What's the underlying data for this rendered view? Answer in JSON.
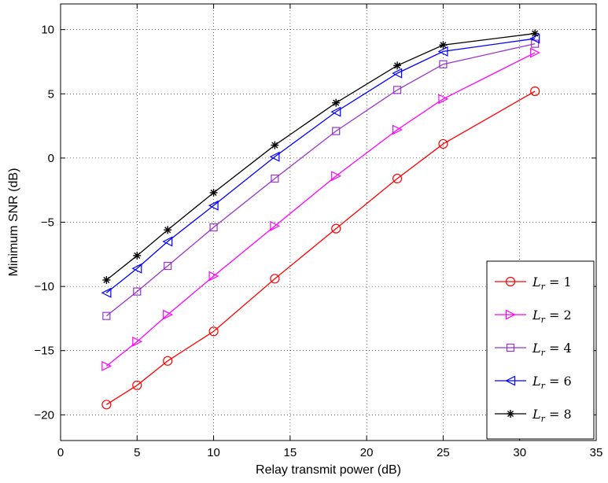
{
  "chart_data": {
    "type": "line",
    "xlabel": "Relay transmit power (dB)",
    "ylabel": "Minimum SNR (dB)",
    "xlim": [
      0,
      35
    ],
    "ylim": [
      -22,
      12
    ],
    "xticks": [
      0,
      5,
      10,
      15,
      20,
      25,
      30,
      35
    ],
    "yticks": [
      -20,
      -15,
      -10,
      -5,
      0,
      5,
      10
    ],
    "grid": true,
    "legend_position": "bottom-right",
    "x": [
      3,
      5,
      7,
      10,
      14,
      18,
      22,
      25,
      31
    ],
    "series": [
      {
        "name": "L_r = 1",
        "legend_main": "L",
        "legend_sub": "r",
        "legend_value": " = 1",
        "color": "#ff0000",
        "marker": "circle",
        "values": [
          -19.2,
          -17.7,
          -15.8,
          -13.5,
          -9.4,
          -5.5,
          -1.6,
          1.1,
          5.2
        ]
      },
      {
        "name": "L_r = 2",
        "legend_main": "L",
        "legend_sub": "r",
        "legend_value": " = 2",
        "color": "#ff00ff",
        "marker": "triangle-right",
        "values": [
          -16.2,
          -14.3,
          -12.2,
          -9.2,
          -5.3,
          -1.4,
          2.2,
          4.6,
          8.2
        ]
      },
      {
        "name": "L_r = 4",
        "legend_main": "L",
        "legend_sub": "r",
        "legend_value": " = 4",
        "color": "#9933cc",
        "marker": "square",
        "values": [
          -12.3,
          -10.4,
          -8.4,
          -5.4,
          -1.6,
          2.1,
          5.3,
          7.3,
          8.9
        ]
      },
      {
        "name": "L_r = 6",
        "legend_main": "L",
        "legend_sub": "r",
        "legend_value": " = 6",
        "color": "#0000ff",
        "marker": "triangle-left",
        "values": [
          -10.5,
          -8.6,
          -6.5,
          -3.7,
          0.1,
          3.6,
          6.6,
          8.3,
          9.3
        ]
      },
      {
        "name": "L_r = 8",
        "legend_main": "L",
        "legend_sub": "r",
        "legend_value": " = 8",
        "color": "#000000",
        "marker": "star",
        "values": [
          -9.5,
          -7.6,
          -5.6,
          -2.7,
          1.0,
          4.3,
          7.2,
          8.8,
          9.7
        ]
      }
    ]
  }
}
